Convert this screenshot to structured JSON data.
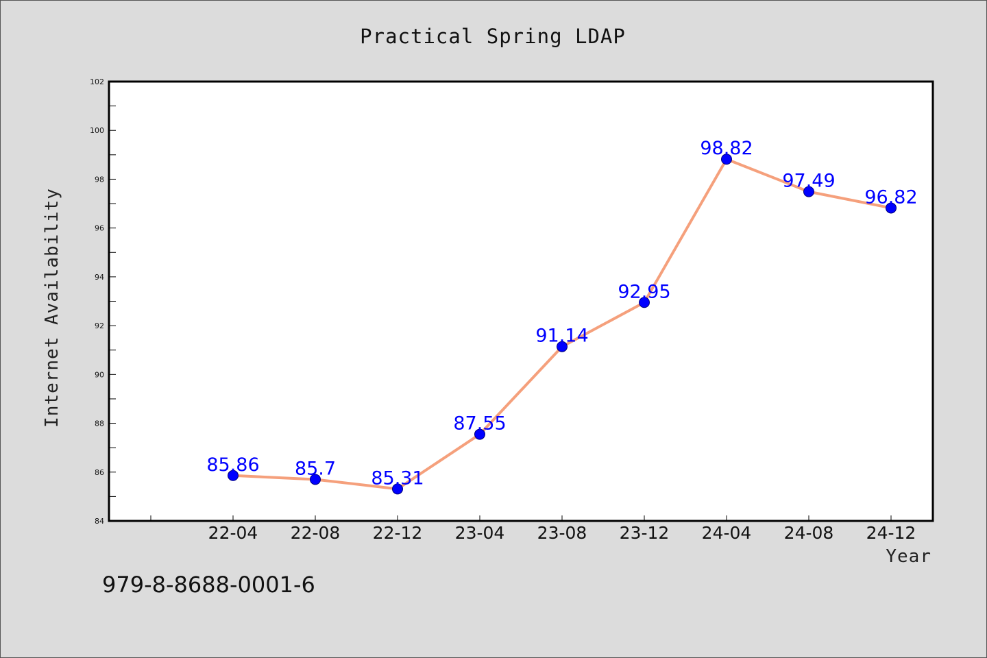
{
  "chart_data": {
    "type": "line",
    "title": "Practical Spring LDAP",
    "xlabel": "Year",
    "ylabel": "Internet Availability",
    "categories": [
      "22-04",
      "22-08",
      "22-12",
      "23-04",
      "23-08",
      "23-12",
      "24-04",
      "24-08",
      "24-12"
    ],
    "series": [
      {
        "values": [
          85.86,
          85.7,
          85.31,
          87.55,
          91.14,
          92.95,
          98.82,
          97.49,
          96.82
        ],
        "line_color": "#f5a07c",
        "marker_color": "#0000ff"
      }
    ],
    "yticks": [
      84,
      86,
      88,
      90,
      92,
      94,
      96,
      98,
      100,
      102
    ],
    "ylim": [
      84,
      102
    ],
    "data_labels": [
      "85.86",
      "85.7",
      "85.31",
      "87.55",
      "91.14",
      "92.95",
      "98.82",
      "97.49",
      "96.82"
    ],
    "grid": false,
    "legend": "none"
  },
  "footer": {
    "isbn": "979-8-8688-0001-6"
  }
}
